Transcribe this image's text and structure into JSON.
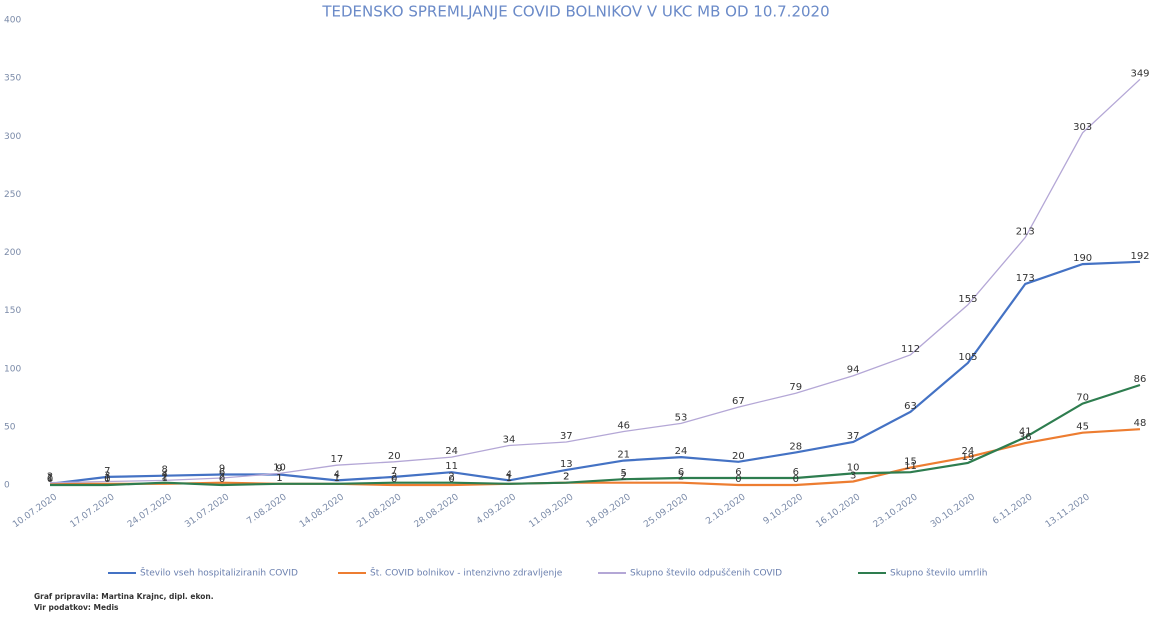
{
  "chart_data": {
    "type": "line",
    "title": "TEDENSKO SPREMLJANJE COVID BOLNIKOV V UKC MB OD 10.7.2020",
    "categories": [
      "10.07.2020",
      "17.07.2020",
      "24.07.2020",
      "31.07.2020",
      "7.08.2020",
      "14.08.2020",
      "21.08.2020",
      "28.08.2020",
      "4.09.2020",
      "11.09.2020",
      "18.09.2020",
      "25.09.2020",
      "2.10.2020",
      "9.10.2020",
      "16.10.2020",
      "23.10.2020",
      "30.10.2020",
      "6.11.2020",
      "13.11.2020",
      null
    ],
    "series": [
      {
        "name": "Število vseh hospitaliziranih COVID",
        "color": "#4472c4",
        "values": [
          1,
          7,
          8,
          9,
          9,
          4,
          7,
          11,
          4,
          13,
          21,
          24,
          20,
          28,
          37,
          63,
          105,
          173,
          190,
          192
        ]
      },
      {
        "name": "Št. COVID bolnikov - intenzivno zdravljenje",
        "color": "#ed7d31",
        "values": [
          1,
          1,
          1,
          2,
          1,
          1,
          0,
          0,
          1,
          2,
          2,
          2,
          0,
          0,
          3,
          15,
          24,
          36,
          45,
          48
        ]
      },
      {
        "name": "Skupno število odpuščenih COVID",
        "color": "#b4a7d6",
        "values": [
          2,
          3,
          4,
          6,
          10,
          17,
          20,
          24,
          34,
          37,
          46,
          53,
          67,
          79,
          94,
          112,
          155,
          213,
          303,
          349
        ]
      },
      {
        "name": "Skupno število umrlih",
        "color": "#2e7d4f",
        "values": [
          0,
          0,
          2,
          0,
          1,
          1,
          2,
          2,
          1,
          2,
          5,
          6,
          6,
          6,
          10,
          11,
          19,
          41,
          70,
          86
        ]
      }
    ],
    "ylim": [
      0,
      400
    ],
    "yticks": [
      0,
      50,
      100,
      150,
      200,
      250,
      300,
      350,
      400
    ],
    "notes": [
      "Graf pripravila: Martina Krajnc, dipl. ekon.",
      "Vir podatkov: Medis"
    ]
  }
}
